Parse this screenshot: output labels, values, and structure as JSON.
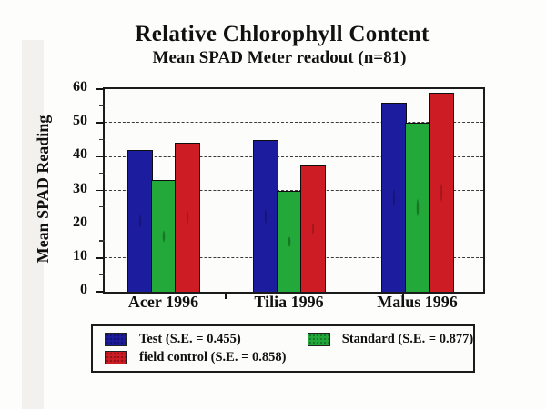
{
  "page": {
    "title": "Relative Chlorophyll Content",
    "subtitle": "Mean SPAD Meter readout (n=81)"
  },
  "chart_data": {
    "type": "bar",
    "title": "Relative Chlorophyll Content",
    "subtitle": "Mean SPAD Meter readout (n=81)",
    "ylabel": "Mean SPAD Reading",
    "xlabel": "",
    "ylim": [
      0,
      60
    ],
    "yticks": [
      0,
      10,
      20,
      30,
      40,
      50,
      60
    ],
    "minor_tick_step": 5,
    "grid": true,
    "gridline_style": "dashed",
    "legend_position": "bottom",
    "categories": [
      "Acer 1996",
      "Tilia 1996",
      "Malus 1996"
    ],
    "series": [
      {
        "name": "Test (S.E. = 0.455)",
        "color": "#1c1c9e",
        "values": [
          42,
          45,
          56
        ]
      },
      {
        "name": "Standard (S.E. = 0.877)",
        "color": "#23a93a",
        "values": [
          33,
          30,
          50
        ]
      },
      {
        "name": "field control (S.E. = 0.858)",
        "color": "#cd1c24",
        "values": [
          44,
          37.5,
          59
        ]
      }
    ]
  },
  "legend": {
    "items": [
      {
        "label": "Test (S.E. = 0.455)",
        "color": "#1c1c9e"
      },
      {
        "label": "Standard (S.E. = 0.877)",
        "color": "#23a93a"
      },
      {
        "label": "field control (S.E. = 0.858)",
        "color": "#cd1c24"
      }
    ]
  }
}
